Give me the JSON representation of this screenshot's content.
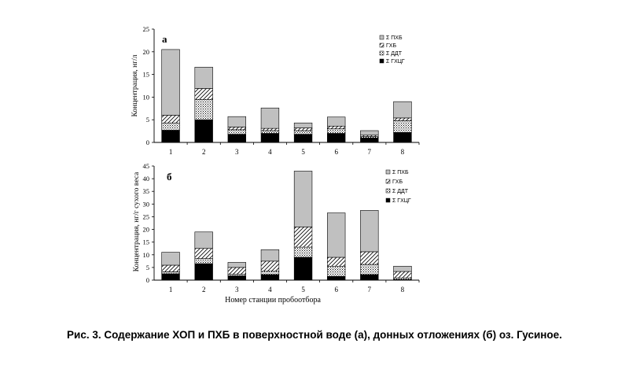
{
  "caption": "Рис. 3. Содержание ХОП и ПХБ в поверхностной воде (а), донных отложениях (б) оз. Гусиное.",
  "xlabel_shared": "Номер станции пробоотбора",
  "legend": [
    {
      "label": "Σ ПХБ",
      "pattern": "gray"
    },
    {
      "label": "ГХБ",
      "pattern": "hatch"
    },
    {
      "label": "Σ ДДТ",
      "pattern": "dots"
    },
    {
      "label": "Σ ГХЦГ",
      "pattern": "black"
    }
  ],
  "chart_data": [
    {
      "type": "bar",
      "stacked": true,
      "panel_label": "а",
      "ylabel": "Концентрация, нг/л",
      "ylim": [
        0,
        25
      ],
      "yticks": [
        0,
        5,
        10,
        15,
        20,
        25
      ],
      "categories": [
        "1",
        "2",
        "3",
        "4",
        "5",
        "6",
        "7",
        "8"
      ],
      "series": [
        {
          "name": "Σ ГХЦГ",
          "values": [
            2.7,
            5.0,
            1.8,
            2.0,
            1.8,
            2.0,
            1.0,
            2.2
          ]
        },
        {
          "name": "Σ ДДТ",
          "values": [
            1.6,
            4.5,
            1.0,
            0.6,
            0.8,
            1.0,
            0.3,
            2.6
          ]
        },
        {
          "name": "ГХБ",
          "values": [
            1.7,
            2.4,
            0.6,
            0.5,
            0.6,
            0.6,
            0.3,
            0.6
          ]
        },
        {
          "name": "Σ ПХБ",
          "values": [
            14.5,
            4.7,
            2.3,
            4.5,
            1.1,
            2.0,
            1.0,
            3.6
          ]
        }
      ]
    },
    {
      "type": "bar",
      "stacked": true,
      "panel_label": "б",
      "ylabel": "Концентрация, нг/г сухого веса",
      "ylim": [
        0,
        45
      ],
      "yticks": [
        0,
        5,
        10,
        15,
        20,
        25,
        30,
        35,
        40,
        45
      ],
      "categories": [
        "1",
        "2",
        "3",
        "4",
        "5",
        "6",
        "7",
        "8"
      ],
      "series": [
        {
          "name": "Σ ГХЦГ",
          "values": [
            2.5,
            6.5,
            1.7,
            2.2,
            9.0,
            1.5,
            2.2,
            0.3
          ]
        },
        {
          "name": "Σ ДДТ",
          "values": [
            0.8,
            2.0,
            0.6,
            1.3,
            4.0,
            4.0,
            4.0,
            0.6
          ]
        },
        {
          "name": "ГХБ",
          "values": [
            2.6,
            4.0,
            2.7,
            4.0,
            8.0,
            3.5,
            5.0,
            2.5
          ]
        },
        {
          "name": "Σ ПХБ",
          "values": [
            5.1,
            6.5,
            2.0,
            4.5,
            22.0,
            17.5,
            16.3,
            2.1
          ]
        }
      ]
    }
  ]
}
